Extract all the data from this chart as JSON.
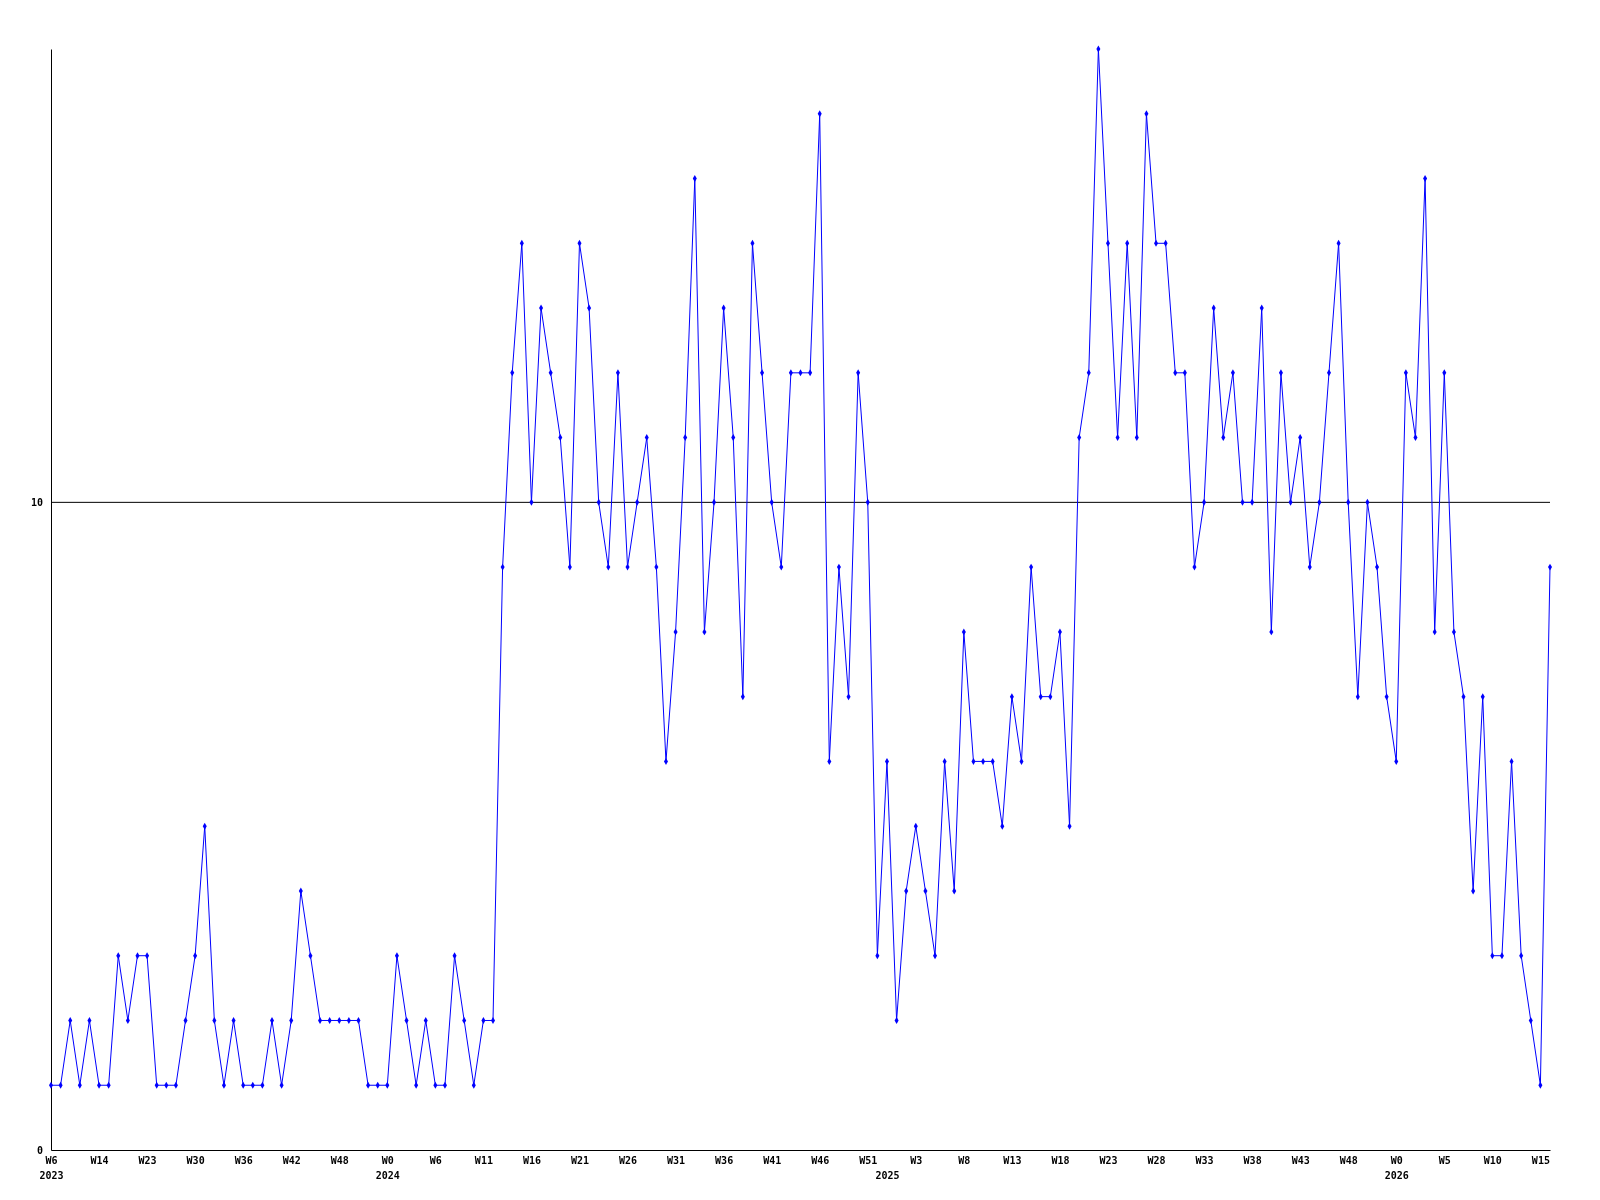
{
  "chart_data": {
    "type": "line",
    "categories": [
      "W6\n2023",
      null,
      null,
      null,
      null,
      "W14",
      null,
      null,
      null,
      null,
      "W23",
      null,
      null,
      null,
      null,
      "W30",
      null,
      null,
      null,
      null,
      "W36",
      null,
      null,
      null,
      null,
      "W42",
      null,
      null,
      null,
      null,
      "W48",
      null,
      null,
      null,
      null,
      "W0\n2024",
      null,
      null,
      null,
      null,
      "W6",
      null,
      null,
      null,
      null,
      "W11",
      null,
      null,
      null,
      null,
      "W16",
      null,
      null,
      null,
      null,
      "W21",
      null,
      null,
      null,
      null,
      "W26",
      null,
      null,
      null,
      null,
      "W31",
      null,
      null,
      null,
      null,
      "W36",
      null,
      null,
      null,
      null,
      "W41",
      null,
      null,
      null,
      null,
      "W46",
      null,
      null,
      null,
      null,
      "W51",
      null,
      "\n2025",
      null,
      null,
      "W3",
      null,
      null,
      null,
      null,
      "W8",
      null,
      null,
      null,
      null,
      "W13",
      null,
      null,
      null,
      null,
      "W18",
      null,
      null,
      null,
      null,
      "W23",
      null,
      null,
      null,
      null,
      "W28",
      null,
      null,
      null,
      null,
      "W33",
      null,
      null,
      null,
      null,
      "W38",
      null,
      null,
      null,
      null,
      "W43",
      null,
      null,
      null,
      null,
      "W48",
      null,
      null,
      null,
      null,
      "W0\n2026",
      null,
      null,
      null,
      null,
      "W5",
      null,
      null,
      null,
      null,
      "W10",
      null,
      null,
      null,
      null,
      "W15",
      null
    ],
    "series": [
      {
        "color": "#0000ff",
        "values": [
          1,
          1,
          2,
          1,
          2,
          1,
          1,
          3,
          2,
          3,
          3,
          1,
          1,
          1,
          2,
          3,
          5,
          2,
          1,
          2,
          1,
          1,
          1,
          2,
          1,
          2,
          4,
          3,
          2,
          2,
          2,
          2,
          2,
          1,
          1,
          1,
          3,
          2,
          1,
          2,
          1,
          1,
          3,
          2,
          1,
          2,
          2,
          9,
          12,
          14,
          10,
          13,
          12,
          11,
          9,
          14,
          13,
          10,
          9,
          12,
          9,
          10,
          11,
          9,
          6,
          8,
          11,
          15,
          8,
          10,
          13,
          11,
          7,
          14,
          12,
          10,
          9,
          12,
          12,
          12,
          16,
          6,
          9,
          7,
          12,
          10,
          3,
          6,
          2,
          4,
          5,
          4,
          3,
          6,
          4,
          8,
          6,
          6,
          6,
          5,
          7,
          6,
          9,
          7,
          7,
          8,
          5,
          11,
          12,
          17,
          14,
          11,
          14,
          11,
          16,
          14,
          14,
          12,
          12,
          9,
          10,
          13,
          11,
          12,
          10,
          10,
          13,
          8,
          12,
          10,
          11,
          9,
          10,
          12,
          14,
          10,
          7,
          10,
          9,
          7,
          6,
          12,
          11,
          15,
          8,
          12,
          8,
          7,
          4,
          7,
          3,
          3,
          6,
          3,
          2,
          1,
          9
        ]
      }
    ],
    "ylim": [
      0,
      17
    ],
    "yticks": [
      0,
      10
    ],
    "grid": "y",
    "marker": "diamond",
    "line_style": "solid"
  }
}
